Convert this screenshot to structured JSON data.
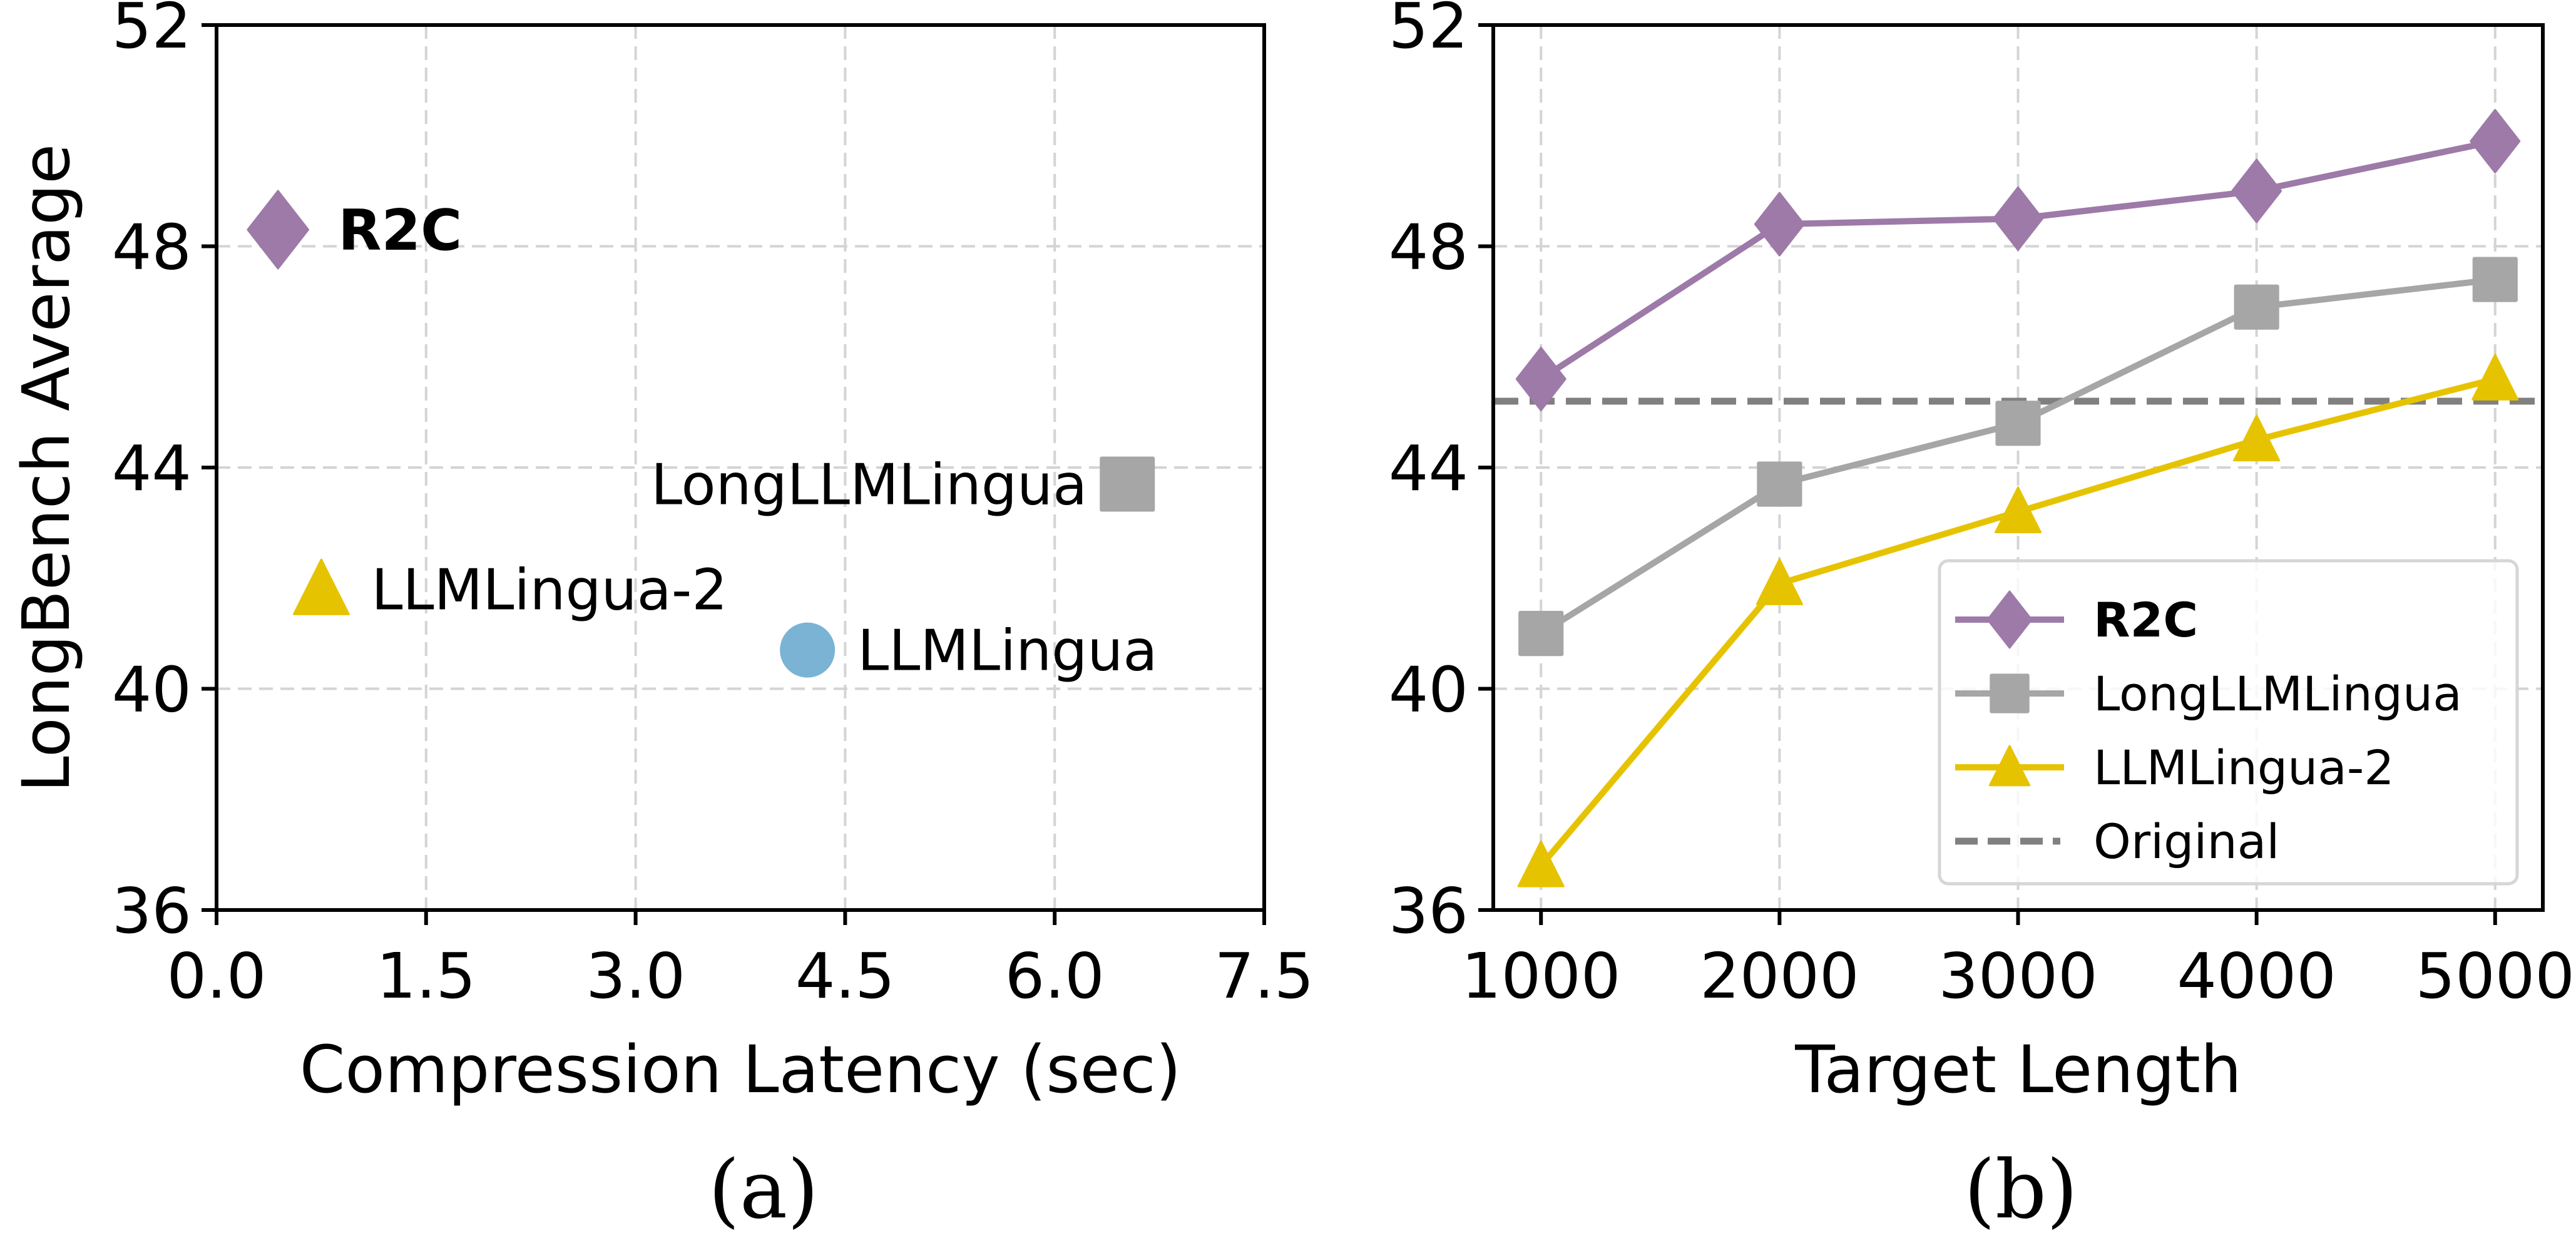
{
  "chart_data": [
    {
      "type": "scatter",
      "caption": "(a)",
      "xlabel": "Compression Latency (sec)",
      "ylabel": "LongBench Average",
      "xlim": [
        0,
        7.5
      ],
      "ylim": [
        36,
        52
      ],
      "xticks": [
        "0.0",
        "1.5",
        "3.0",
        "4.5",
        "6.0",
        "7.5"
      ],
      "yticks": [
        "36",
        "40",
        "44",
        "48",
        "52"
      ],
      "grid": true,
      "points": [
        {
          "label": "R2C",
          "x": 0.44,
          "y": 48.3,
          "marker": "diamond",
          "color": "#9d7aa8",
          "bold": true
        },
        {
          "label": "LLMLingua-2",
          "x": 0.75,
          "y": 41.8,
          "marker": "triangle",
          "color": "#e6c300"
        },
        {
          "label": "LLMLingua",
          "x": 4.23,
          "y": 40.7,
          "marker": "circle",
          "color": "#7ab3d4"
        },
        {
          "label": "LongLLMLingua",
          "x": 6.52,
          "y": 43.7,
          "marker": "square",
          "color": "#a6a6a6"
        }
      ]
    },
    {
      "type": "line",
      "caption": "(b)",
      "xlabel": "Target Length",
      "ylabel": "",
      "x": [
        1000,
        2000,
        3000,
        4000,
        5000
      ],
      "xlim": [
        800,
        5200
      ],
      "ylim": [
        36,
        52
      ],
      "xticks": [
        "1000",
        "2000",
        "3000",
        "4000",
        "5000"
      ],
      "yticks": [
        "36",
        "40",
        "44",
        "48",
        "52"
      ],
      "grid": true,
      "legend": "lower-right",
      "series": [
        {
          "name": "R2C",
          "values": [
            45.6,
            48.4,
            48.5,
            49.0,
            49.9
          ],
          "marker": "diamond",
          "color": "#9d7aa8",
          "bold": true
        },
        {
          "name": "LongLLMLingua",
          "values": [
            41.0,
            43.7,
            44.8,
            46.9,
            47.4
          ],
          "marker": "square",
          "color": "#a6a6a6"
        },
        {
          "name": "LLMLingua-2",
          "values": [
            36.8,
            41.9,
            43.2,
            44.5,
            45.6
          ],
          "marker": "triangle",
          "color": "#e6c300"
        }
      ],
      "reference_line": {
        "name": "Original",
        "value": 45.2,
        "color": "#808080",
        "style": "dashed"
      }
    }
  ]
}
